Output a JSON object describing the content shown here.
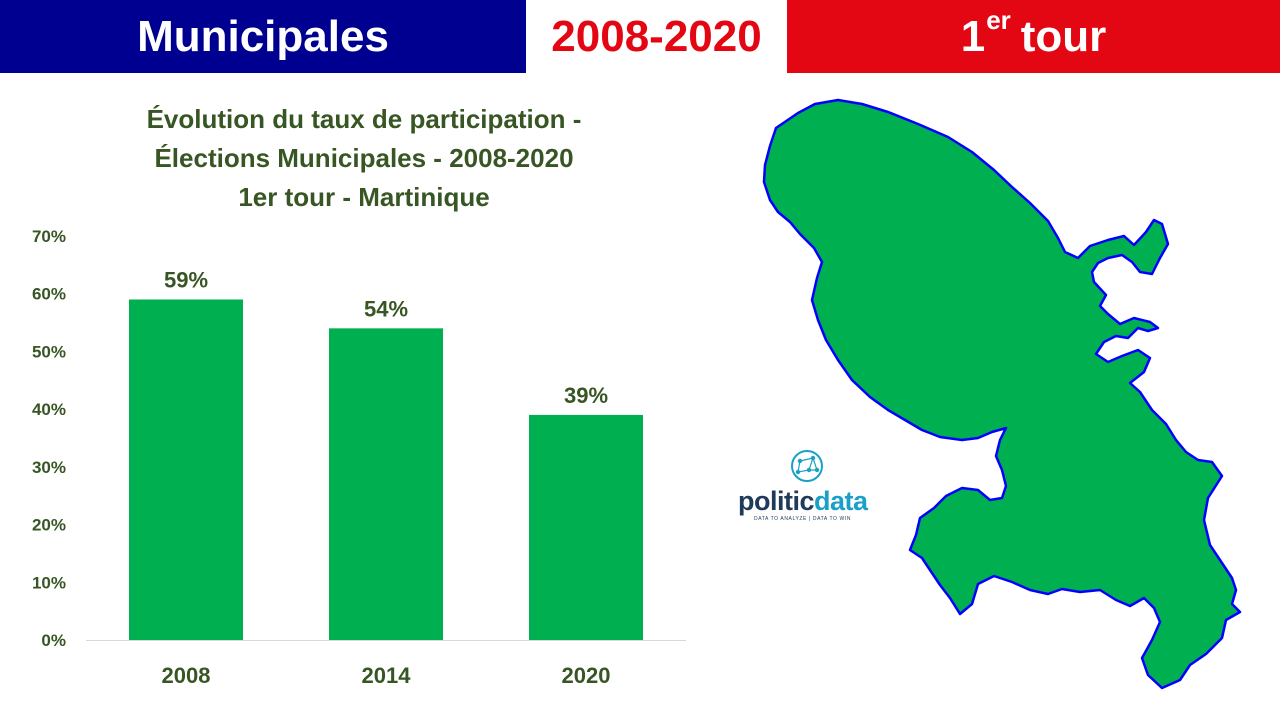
{
  "header": {
    "left_title": "Municipales",
    "middle_title": "2008-2020",
    "right_title_number": "1",
    "right_title_sup": "er",
    "right_title_word": "tour",
    "colors": {
      "left_bg": "#000090",
      "middle_text": "#e30613",
      "right_bg": "#e30613"
    }
  },
  "chart_data": {
    "type": "bar",
    "title_lines": [
      "Évolution du taux de participation -",
      "Élections Municipales - 2008-2020",
      "1er tour - Martinique"
    ],
    "categories": [
      "2008",
      "2014",
      "2020"
    ],
    "values": [
      59,
      54,
      39
    ],
    "data_labels": [
      "59%",
      "54%",
      "39%"
    ],
    "y_ticks": [
      "0%",
      "10%",
      "20%",
      "30%",
      "40%",
      "50%",
      "60%",
      "70%"
    ],
    "ylim": [
      0,
      70
    ],
    "xlabel": "",
    "ylabel": "",
    "grid": false,
    "bar_color": "#00b050",
    "text_color": "#375623"
  },
  "map": {
    "icon": "martinique-map-icon",
    "fill": "#00b050",
    "stroke": "#0000ff"
  },
  "logo": {
    "part1": "politic",
    "part2": "data",
    "tagline": "DATA TO ANALYZE | DATA TO WIN",
    "icon": "network-globe-icon"
  }
}
